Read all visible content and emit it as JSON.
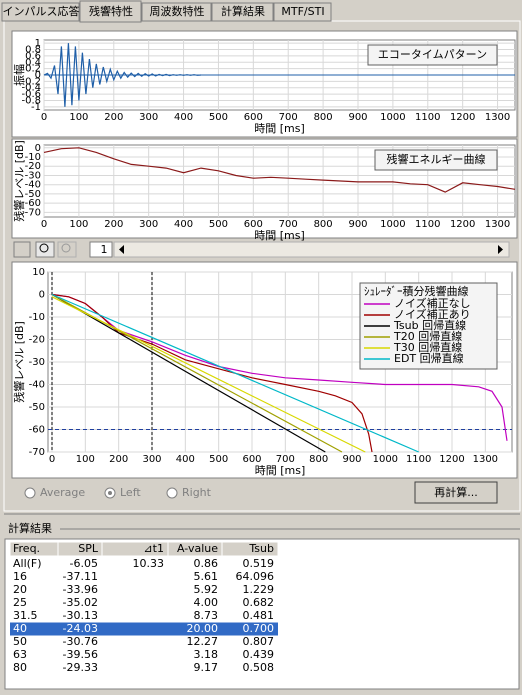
{
  "tabs": {
    "items": [
      "インパルス応答",
      "残響特性",
      "周波数特性",
      "計算結果",
      "MTF/STI"
    ],
    "active": 1
  },
  "chart_data": [
    {
      "type": "line",
      "ylabel": "振幅",
      "xlabel": "時間 [ms]",
      "grid": true,
      "xlim": [
        0,
        1350
      ],
      "ylim": [
        -1.1,
        1.1
      ],
      "xticks": [
        0,
        100,
        200,
        300,
        400,
        500,
        600,
        700,
        800,
        900,
        1000,
        1100,
        1200,
        1300
      ],
      "yticks": [
        1,
        0.8,
        0.6,
        0.4,
        0.2,
        0,
        -0.2,
        -0.4,
        -0.6,
        -0.8,
        -1
      ],
      "series": [
        {
          "name": "エコータイムパターン",
          "color": "#1f5fa8",
          "x": [
            0,
            10,
            20,
            30,
            40,
            50,
            60,
            70,
            80,
            90,
            100,
            110,
            120,
            130,
            140,
            150,
            160,
            170,
            180,
            190,
            200,
            210,
            220,
            230,
            240,
            250,
            260,
            270,
            280,
            290,
            300,
            310,
            320,
            330,
            340,
            350,
            360,
            370,
            380,
            390,
            400,
            410,
            420,
            430,
            440,
            450
          ],
          "values": [
            0,
            0.05,
            -0.1,
            0.3,
            -0.6,
            0.9,
            -1,
            1,
            -0.95,
            0.9,
            -0.8,
            0.7,
            -0.6,
            0.5,
            -0.4,
            0.35,
            -0.3,
            0.25,
            -0.2,
            0.18,
            -0.15,
            0.12,
            -0.1,
            0.08,
            -0.07,
            0.06,
            -0.05,
            0.05,
            -0.04,
            0.04,
            -0.03,
            0.03,
            -0.03,
            0.02,
            -0.02,
            0.02,
            -0.02,
            0.01,
            -0.01,
            0.01,
            -0.01,
            0.01,
            -0.01,
            0.01,
            -0.01,
            0
          ]
        }
      ]
    },
    {
      "type": "line",
      "ylabel": "残響レベル [dB]",
      "xlabel": "時間 [ms]",
      "grid": true,
      "xlim": [
        0,
        1350
      ],
      "ylim": [
        -75,
        3
      ],
      "xticks": [
        0,
        100,
        200,
        300,
        400,
        500,
        600,
        700,
        800,
        900,
        1000,
        1100,
        1200,
        1300
      ],
      "yticks": [
        0,
        -10,
        -20,
        -30,
        -40,
        -50,
        -60,
        -70
      ],
      "series": [
        {
          "name": "残響エネルギー曲線",
          "color": "#8b1a1a",
          "x": [
            0,
            50,
            100,
            150,
            200,
            250,
            300,
            350,
            400,
            450,
            500,
            550,
            600,
            650,
            700,
            750,
            800,
            850,
            900,
            950,
            1000,
            1050,
            1100,
            1150,
            1200,
            1250,
            1300,
            1350
          ],
          "values": [
            -5,
            -1,
            0,
            -5,
            -12,
            -18,
            -20,
            -22,
            -27,
            -22,
            -25,
            -30,
            -33,
            -32,
            -33,
            -34,
            -35,
            -36,
            -37,
            -37,
            -37,
            -39,
            -40,
            -48,
            -38,
            -40,
            -42,
            -45
          ]
        }
      ]
    },
    {
      "type": "line",
      "ylabel": "残響レベル [dB]",
      "xlabel": "時間 [ms]",
      "grid": true,
      "legend_title": "ｼｭﾚｰﾀﾞｰ積分残響曲線",
      "xlim": [
        -12,
        1380
      ],
      "ylim": [
        -70,
        10
      ],
      "xticks": [
        0,
        100,
        200,
        300,
        400,
        500,
        600,
        700,
        800,
        900,
        1000,
        1100,
        1200,
        1300
      ],
      "yticks": [
        10,
        0,
        -10,
        -20,
        -30,
        -40,
        -50,
        -60,
        -70
      ],
      "vlines": [
        0,
        300
      ],
      "hlines": [
        -60
      ],
      "series": [
        {
          "name": "ノイズ補正なし",
          "color": "#c000c0",
          "x": [
            0,
            50,
            100,
            150,
            200,
            300,
            400,
            500,
            600,
            700,
            800,
            900,
            1000,
            1100,
            1200,
            1280,
            1320,
            1350,
            1365
          ],
          "values": [
            0,
            -1,
            -4,
            -10,
            -16,
            -21,
            -27,
            -32,
            -35,
            -37,
            -38,
            -39,
            -40,
            -40,
            -40,
            -41,
            -43,
            -50,
            -65
          ]
        },
        {
          "name": "ノイズ補正あり",
          "color": "#a00000",
          "x": [
            0,
            50,
            100,
            150,
            200,
            300,
            400,
            500,
            600,
            700,
            800,
            850,
            900,
            930,
            950,
            960
          ],
          "values": [
            0,
            -1,
            -4,
            -10,
            -17,
            -22,
            -29,
            -33,
            -37,
            -40,
            -43,
            -45,
            -48,
            -53,
            -62,
            -70
          ]
        },
        {
          "name": "Tsub 回帰直線",
          "color": "#000000",
          "x": [
            0,
            820
          ],
          "values": [
            0,
            -70
          ]
        },
        {
          "name": "T20 回帰直線",
          "color": "#a0a000",
          "x": [
            0,
            870
          ],
          "values": [
            0,
            -70
          ]
        },
        {
          "name": "T30 回帰直線",
          "color": "#d8d800",
          "x": [
            0,
            940
          ],
          "values": [
            -1,
            -70
          ]
        },
        {
          "name": "EDT 回帰直線",
          "color": "#00b8c8",
          "x": [
            0,
            1100
          ],
          "values": [
            0,
            -70
          ]
        }
      ]
    }
  ],
  "toolbar": {
    "page": "1"
  },
  "controls": {
    "channels": [
      "Average",
      "Left",
      "Right"
    ],
    "selected": 1,
    "button": "再計算..."
  },
  "results": {
    "title": "計算結果",
    "columns": [
      "Freq.",
      "SPL",
      "⊿t1",
      "A-value",
      "Tsub"
    ],
    "selected_row": 5,
    "rows": [
      [
        "All(F)",
        "-6.05",
        "10.33",
        "0.86",
        "0.519"
      ],
      [
        "16",
        "-37.11",
        null,
        "5.61",
        "64.096"
      ],
      [
        "20",
        "-33.96",
        null,
        "5.92",
        "1.229"
      ],
      [
        "25",
        "-35.02",
        null,
        "4.00",
        "0.682"
      ],
      [
        "31.5",
        "-30.13",
        null,
        "8.73",
        "0.481"
      ],
      [
        "40",
        "-24.03",
        null,
        "20.00",
        "0.700"
      ],
      [
        "50",
        "-30.76",
        null,
        "12.27",
        "0.807"
      ],
      [
        "63",
        "-39.56",
        null,
        "3.18",
        "0.439"
      ],
      [
        "80",
        "-29.33",
        null,
        "9.17",
        "0.508"
      ]
    ]
  }
}
